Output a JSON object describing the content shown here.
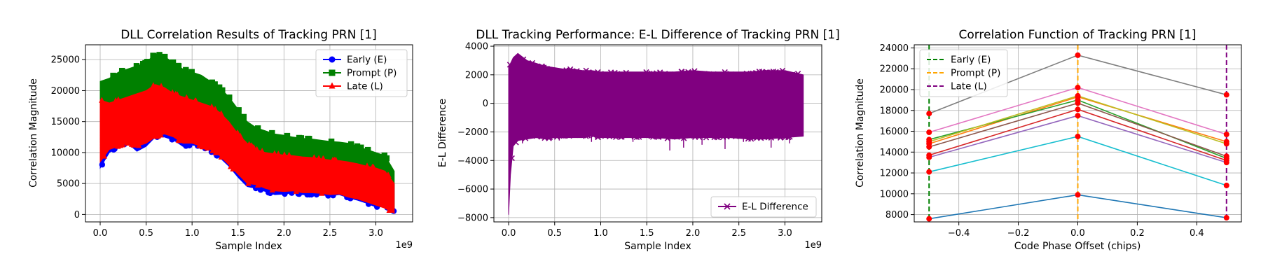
{
  "chart_data": [
    {
      "type": "line",
      "title": "DLL Correlation Results of Tracking PRN [1]",
      "xlabel": "Sample Index",
      "ylabel": "Correlation Magnitude",
      "x_multiplier": "1e9",
      "xlim": [
        -0.16,
        3.4
      ],
      "ylim": [
        -1200,
        27400
      ],
      "xticks": [
        0.0,
        0.5,
        1.0,
        1.5,
        2.0,
        2.5,
        3.0
      ],
      "xtick_labels": [
        "0.0",
        "0.5",
        "1.0",
        "1.5",
        "2.0",
        "2.5",
        "3.0"
      ],
      "yticks": [
        0,
        5000,
        10000,
        15000,
        20000,
        25000
      ],
      "ytick_labels": [
        "0",
        "5000",
        "10000",
        "15000",
        "20000",
        "25000"
      ],
      "grid": true,
      "legend_position": "top-right",
      "x": [
        0.0,
        0.1,
        0.2,
        0.3,
        0.4,
        0.5,
        0.6,
        0.7,
        0.8,
        0.9,
        1.0,
        1.1,
        1.2,
        1.3,
        1.4,
        1.5,
        1.6,
        1.7,
        1.8,
        1.9,
        2.0,
        2.1,
        2.2,
        2.3,
        2.4,
        2.5,
        2.6,
        2.7,
        2.8,
        2.9,
        3.0,
        3.1,
        3.2
      ],
      "series": [
        {
          "name": "Early (E)",
          "color": "#0000ff",
          "marker": "circle",
          "upper": [
            17500,
            17000,
            17500,
            18200,
            18500,
            19500,
            20000,
            20500,
            19800,
            19200,
            18500,
            18500,
            17500,
            16500,
            15000,
            13000,
            11000,
            10000,
            9500,
            9500,
            9500,
            9200,
            9000,
            8800,
            8500,
            8300,
            8200,
            8000,
            7800,
            7600,
            7400,
            7000,
            5000
          ],
          "lower": [
            7500,
            10000,
            11000,
            11500,
            10200,
            11000,
            12500,
            12500,
            12000,
            11000,
            11200,
            11000,
            10200,
            9200,
            7800,
            6000,
            4500,
            4200,
            3700,
            3200,
            3300,
            3500,
            3200,
            3200,
            3200,
            3000,
            3200,
            2700,
            2300,
            1800,
            1200,
            1300,
            500
          ]
        },
        {
          "name": "Prompt (P)",
          "color": "#008000",
          "marker": "square",
          "upper": [
            21500,
            22000,
            23000,
            23500,
            24000,
            24500,
            26000,
            25500,
            24500,
            23500,
            23000,
            22500,
            21500,
            20500,
            19000,
            17000,
            15000,
            14000,
            13500,
            13000,
            12800,
            12500,
            12300,
            12200,
            12000,
            11800,
            11700,
            11500,
            11000,
            10500,
            10000,
            9500,
            7000
          ],
          "lower": [
            11500,
            13000,
            13500,
            14000,
            14000,
            14500,
            15000,
            15000,
            14500,
            14000,
            13800,
            13500,
            12800,
            12000,
            10500,
            8500,
            7000,
            6200,
            5800,
            5500,
            5400,
            5300,
            5200,
            5000,
            4800,
            4700,
            4500,
            4300,
            4000,
            3500,
            3000,
            2500,
            1000
          ]
        },
        {
          "name": "Late (L)",
          "color": "#ff0000",
          "marker": "triangle",
          "upper": [
            18500,
            18000,
            18500,
            19000,
            19500,
            20000,
            21000,
            20500,
            19500,
            19000,
            18500,
            18000,
            17500,
            16500,
            15000,
            13000,
            11500,
            10500,
            10000,
            9800,
            9600,
            9500,
            9300,
            9200,
            9000,
            8800,
            8700,
            8500,
            8200,
            7800,
            7500,
            7000,
            5000
          ],
          "lower": [
            8500,
            10500,
            11000,
            11500,
            11000,
            11500,
            12500,
            13000,
            12500,
            11500,
            11500,
            11000,
            10500,
            9500,
            8000,
            6500,
            5000,
            4800,
            4200,
            3800,
            3700,
            3800,
            3500,
            3500,
            3400,
            3200,
            3300,
            2800,
            2500,
            2000,
            1500,
            1000,
            200
          ]
        }
      ]
    },
    {
      "type": "line",
      "title": "DLL Tracking Performance: E-L Difference of Tracking PRN [1]",
      "xlabel": "Sample Index",
      "ylabel": "E-L Difference",
      "x_multiplier": "1e9",
      "xlim": [
        -0.16,
        3.4
      ],
      "ylim": [
        -8300,
        4100
      ],
      "xticks": [
        0.0,
        0.5,
        1.0,
        1.5,
        2.0,
        2.5,
        3.0
      ],
      "xtick_labels": [
        "0.0",
        "0.5",
        "1.0",
        "1.5",
        "2.0",
        "2.5",
        "3.0"
      ],
      "yticks": [
        -8000,
        -6000,
        -4000,
        -2000,
        0,
        2000,
        4000
      ],
      "ytick_labels": [
        "−8000",
        "−6000",
        "−4000",
        "−2000",
        "0",
        "2000",
        "4000"
      ],
      "grid": true,
      "legend_position": "bottom-right",
      "series": [
        {
          "name": "E-L Difference",
          "color": "#800080",
          "marker": "x",
          "x": [
            0.0,
            0.02,
            0.05,
            0.1,
            0.2,
            0.3,
            0.4,
            0.5,
            0.6,
            0.7,
            0.8,
            0.9,
            1.0,
            1.2,
            1.4,
            1.6,
            1.8,
            2.0,
            2.2,
            2.4,
            2.6,
            2.8,
            3.0,
            3.2
          ],
          "upper": [
            2500,
            2800,
            3200,
            3500,
            3000,
            2800,
            2600,
            2500,
            2400,
            2400,
            2300,
            2300,
            2200,
            2200,
            2200,
            2200,
            2200,
            2300,
            2200,
            2200,
            2200,
            2300,
            2300,
            2000
          ],
          "lower": [
            -7800,
            -5000,
            -3000,
            -2600,
            -2500,
            -2400,
            -2500,
            -2400,
            -2400,
            -2400,
            -2400,
            -2300,
            -2400,
            -2400,
            -2400,
            -2400,
            -2500,
            -2400,
            -2400,
            -2400,
            -2500,
            -2500,
            -2400,
            -2300
          ],
          "spike_x": [
            0.15,
            0.55,
            0.9,
            1.35,
            1.75,
            1.9,
            2.1,
            2.35,
            2.55,
            2.85,
            3.05
          ],
          "spike_y": [
            -2800,
            -2600,
            -2700,
            -2700,
            -3300,
            -3100,
            -2900,
            -3200,
            -2700,
            -3100,
            -2800
          ]
        }
      ]
    },
    {
      "type": "line",
      "title": "Correlation Function of Tracking PRN [1]",
      "xlabel": "Code Phase Offset (chips)",
      "ylabel": "Correlation Magnitude",
      "xlim": [
        -0.55,
        0.55
      ],
      "ylim": [
        7300,
        24300
      ],
      "xticks": [
        -0.4,
        -0.2,
        0.0,
        0.2,
        0.4
      ],
      "xtick_labels": [
        "−0.4",
        "−0.2",
        "0.0",
        "0.2",
        "0.4"
      ],
      "yticks": [
        8000,
        10000,
        12000,
        14000,
        16000,
        18000,
        20000,
        22000,
        24000
      ],
      "ytick_labels": [
        "8000",
        "10000",
        "12000",
        "14000",
        "16000",
        "18000",
        "20000",
        "22000",
        "24000"
      ],
      "grid": true,
      "legend_position": "top-left",
      "vlines": [
        {
          "name": "Early (E)",
          "x": -0.5,
          "color": "#008000"
        },
        {
          "name": "Prompt (P)",
          "x": 0.0,
          "color": "#ffa500"
        },
        {
          "name": "Late (L)",
          "x": 0.5,
          "color": "#800080"
        }
      ],
      "x": [
        -0.5,
        0.0,
        0.5
      ],
      "point_color": "#ff0000",
      "curves": [
        {
          "color": "#1f77b4",
          "values": [
            7600,
            9900,
            7700
          ]
        },
        {
          "color": "#ff7f0e",
          "values": [
            14800,
            19300,
            15000
          ]
        },
        {
          "color": "#2ca02c",
          "values": [
            15200,
            19000,
            13400
          ]
        },
        {
          "color": "#d62728",
          "values": [
            13700,
            18100,
            13200
          ]
        },
        {
          "color": "#9467bd",
          "values": [
            13500,
            17500,
            13000
          ]
        },
        {
          "color": "#8c564b",
          "values": [
            14500,
            18700,
            13600
          ]
        },
        {
          "color": "#e377c2",
          "values": [
            15900,
            20200,
            15700
          ]
        },
        {
          "color": "#7f7f7f",
          "values": [
            17700,
            23300,
            19500
          ]
        },
        {
          "color": "#bcbd22",
          "values": [
            15000,
            19400,
            14800
          ]
        },
        {
          "color": "#17becf",
          "values": [
            12100,
            15500,
            10800
          ]
        }
      ]
    }
  ]
}
